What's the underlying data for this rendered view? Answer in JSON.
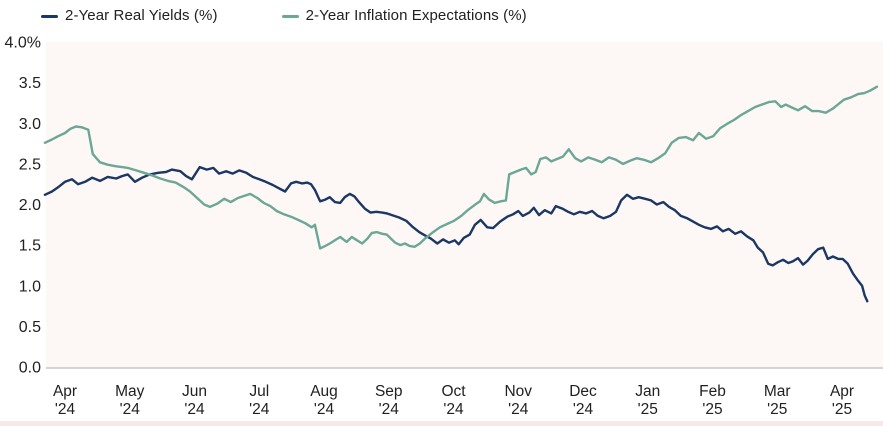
{
  "legend": {
    "items": [
      {
        "label": "2-Year Real Yields (%)",
        "series": "real_yields"
      },
      {
        "label": "2-Year Inflation Expectations (%)",
        "series": "inflation_expectations"
      }
    ]
  },
  "colors": {
    "real_yields": "#1b3764",
    "inflation_expectations": "#6ca796",
    "plot_background": "#fdf8f5",
    "axis_line": "#cac5c2",
    "text": "#212121",
    "bottom_strip": "#f7e9e5"
  },
  "chart_data": {
    "type": "line",
    "title": "",
    "xlabel": "",
    "ylabel": "",
    "grid": false,
    "legend_position": "top-left",
    "x_unit": "months since Apr 2024",
    "y_axis": {
      "range": [
        0.0,
        4.0
      ],
      "ticks": [
        {
          "label": "4.0%",
          "value": 4.0
        },
        {
          "label": "3.5",
          "value": 3.5
        },
        {
          "label": "3.0",
          "value": 3.0
        },
        {
          "label": "2.5",
          "value": 2.5
        },
        {
          "label": "2.0",
          "value": 2.0
        },
        {
          "label": "1.5",
          "value": 1.5
        },
        {
          "label": "1.0",
          "value": 1.0
        },
        {
          "label": "0.5",
          "value": 0.5
        },
        {
          "label": "0.0",
          "value": 0.0
        }
      ]
    },
    "x_axis": {
      "ticks": [
        {
          "month": "Apr",
          "year": "'24"
        },
        {
          "month": "May",
          "year": "'24"
        },
        {
          "month": "Jun",
          "year": "'24"
        },
        {
          "month": "Jul",
          "year": "'24"
        },
        {
          "month": "Aug",
          "year": "'24"
        },
        {
          "month": "Sep",
          "year": "'24"
        },
        {
          "month": "Oct",
          "year": "'24"
        },
        {
          "month": "Nov",
          "year": "'24"
        },
        {
          "month": "Dec",
          "year": "'24"
        },
        {
          "month": "Jan",
          "year": "'25"
        },
        {
          "month": "Feb",
          "year": "'25"
        },
        {
          "month": "Mar",
          "year": "'25"
        },
        {
          "month": "Apr",
          "year": "'25"
        }
      ]
    },
    "series": [
      {
        "name": "2-Year Real Yields (%)",
        "color_key": "real_yields",
        "points": [
          [
            -0.31,
            2.12
          ],
          [
            -0.2,
            2.16
          ],
          [
            -0.11,
            2.21
          ],
          [
            0,
            2.28
          ],
          [
            0.11,
            2.31
          ],
          [
            0.2,
            2.25
          ],
          [
            0.31,
            2.28
          ],
          [
            0.42,
            2.33
          ],
          [
            0.54,
            2.29
          ],
          [
            0.66,
            2.34
          ],
          [
            0.79,
            2.32
          ],
          [
            0.88,
            2.35
          ],
          [
            0.97,
            2.37
          ],
          [
            1.08,
            2.28
          ],
          [
            1.19,
            2.33
          ],
          [
            1.31,
            2.37
          ],
          [
            1.44,
            2.39
          ],
          [
            1.56,
            2.4
          ],
          [
            1.65,
            2.43
          ],
          [
            1.78,
            2.41
          ],
          [
            1.87,
            2.35
          ],
          [
            1.96,
            2.31
          ],
          [
            2.08,
            2.46
          ],
          [
            2.19,
            2.43
          ],
          [
            2.29,
            2.45
          ],
          [
            2.38,
            2.38
          ],
          [
            2.49,
            2.41
          ],
          [
            2.59,
            2.38
          ],
          [
            2.69,
            2.42
          ],
          [
            2.8,
            2.39
          ],
          [
            2.9,
            2.34
          ],
          [
            3,
            2.31
          ],
          [
            3.1,
            2.28
          ],
          [
            3.21,
            2.24
          ],
          [
            3.3,
            2.2
          ],
          [
            3.4,
            2.16
          ],
          [
            3.49,
            2.26
          ],
          [
            3.57,
            2.28
          ],
          [
            3.66,
            2.26
          ],
          [
            3.74,
            2.27
          ],
          [
            3.8,
            2.25
          ],
          [
            3.86,
            2.18
          ],
          [
            3.94,
            2.04
          ],
          [
            4.02,
            2.06
          ],
          [
            4.09,
            2.09
          ],
          [
            4.17,
            2.03
          ],
          [
            4.25,
            2.02
          ],
          [
            4.32,
            2.09
          ],
          [
            4.4,
            2.13
          ],
          [
            4.47,
            2.1
          ],
          [
            4.54,
            2.03
          ],
          [
            4.63,
            1.95
          ],
          [
            4.72,
            1.9
          ],
          [
            4.81,
            1.91
          ],
          [
            4.9,
            1.9
          ],
          [
            4.97,
            1.89
          ],
          [
            5.05,
            1.87
          ],
          [
            5.16,
            1.84
          ],
          [
            5.27,
            1.8
          ],
          [
            5.36,
            1.73
          ],
          [
            5.47,
            1.66
          ],
          [
            5.56,
            1.62
          ],
          [
            5.65,
            1.58
          ],
          [
            5.75,
            1.52
          ],
          [
            5.84,
            1.57
          ],
          [
            5.93,
            1.53
          ],
          [
            6.02,
            1.56
          ],
          [
            6.08,
            1.51
          ],
          [
            6.16,
            1.59
          ],
          [
            6.25,
            1.63
          ],
          [
            6.33,
            1.75
          ],
          [
            6.42,
            1.81
          ],
          [
            6.52,
            1.72
          ],
          [
            6.61,
            1.71
          ],
          [
            6.72,
            1.79
          ],
          [
            6.83,
            1.85
          ],
          [
            6.92,
            1.88
          ],
          [
            7,
            1.92
          ],
          [
            7.07,
            1.86
          ],
          [
            7.17,
            1.9
          ],
          [
            7.24,
            1.96
          ],
          [
            7.32,
            1.87
          ],
          [
            7.41,
            1.93
          ],
          [
            7.51,
            1.89
          ],
          [
            7.58,
            1.98
          ],
          [
            7.68,
            1.95
          ],
          [
            7.77,
            1.91
          ],
          [
            7.86,
            1.88
          ],
          [
            7.95,
            1.91
          ],
          [
            8.05,
            1.89
          ],
          [
            8.14,
            1.92
          ],
          [
            8.23,
            1.86
          ],
          [
            8.32,
            1.83
          ],
          [
            8.42,
            1.86
          ],
          [
            8.51,
            1.91
          ],
          [
            8.59,
            2.05
          ],
          [
            8.68,
            2.12
          ],
          [
            8.77,
            2.07
          ],
          [
            8.86,
            2.09
          ],
          [
            8.96,
            2.07
          ],
          [
            9.05,
            2.05
          ],
          [
            9.14,
            2
          ],
          [
            9.24,
            2.03
          ],
          [
            9.33,
            1.97
          ],
          [
            9.42,
            1.93
          ],
          [
            9.51,
            1.86
          ],
          [
            9.61,
            1.83
          ],
          [
            9.7,
            1.79
          ],
          [
            9.79,
            1.75
          ],
          [
            9.88,
            1.72
          ],
          [
            9.98,
            1.7
          ],
          [
            10.07,
            1.73
          ],
          [
            10.16,
            1.67
          ],
          [
            10.25,
            1.7
          ],
          [
            10.35,
            1.64
          ],
          [
            10.44,
            1.67
          ],
          [
            10.53,
            1.61
          ],
          [
            10.63,
            1.56
          ],
          [
            10.7,
            1.47
          ],
          [
            10.78,
            1.41
          ],
          [
            10.86,
            1.27
          ],
          [
            10.93,
            1.25
          ],
          [
            11.01,
            1.29
          ],
          [
            11.09,
            1.32
          ],
          [
            11.17,
            1.28
          ],
          [
            11.24,
            1.3
          ],
          [
            11.32,
            1.34
          ],
          [
            11.4,
            1.26
          ],
          [
            11.47,
            1.31
          ],
          [
            11.55,
            1.39
          ],
          [
            11.63,
            1.45
          ],
          [
            11.71,
            1.47
          ],
          [
            11.78,
            1.33
          ],
          [
            11.86,
            1.36
          ],
          [
            11.94,
            1.33
          ],
          [
            12.01,
            1.33
          ],
          [
            12.09,
            1.27
          ],
          [
            12.17,
            1.15
          ],
          [
            12.25,
            1.06
          ],
          [
            12.31,
            1
          ],
          [
            12.35,
            0.88
          ],
          [
            12.39,
            0.81
          ]
        ]
      },
      {
        "name": "2-Year Inflation Expectations (%)",
        "color_key": "inflation_expectations",
        "points": [
          [
            -0.31,
            2.76
          ],
          [
            -0.2,
            2.8
          ],
          [
            -0.11,
            2.84
          ],
          [
            0,
            2.88
          ],
          [
            0.08,
            2.93
          ],
          [
            0.17,
            2.96
          ],
          [
            0.26,
            2.95
          ],
          [
            0.36,
            2.92
          ],
          [
            0.43,
            2.62
          ],
          [
            0.54,
            2.52
          ],
          [
            0.66,
            2.49
          ],
          [
            0.79,
            2.47
          ],
          [
            0.88,
            2.46
          ],
          [
            0.97,
            2.45
          ],
          [
            1.1,
            2.42
          ],
          [
            1.22,
            2.39
          ],
          [
            1.34,
            2.36
          ],
          [
            1.47,
            2.32
          ],
          [
            1.59,
            2.29
          ],
          [
            1.71,
            2.27
          ],
          [
            1.84,
            2.21
          ],
          [
            1.93,
            2.16
          ],
          [
            2.04,
            2.08
          ],
          [
            2.15,
            2
          ],
          [
            2.24,
            1.97
          ],
          [
            2.35,
            2.01
          ],
          [
            2.46,
            2.07
          ],
          [
            2.56,
            2.03
          ],
          [
            2.67,
            2.08
          ],
          [
            2.78,
            2.11
          ],
          [
            2.86,
            2.13
          ],
          [
            2.97,
            2.08
          ],
          [
            3.07,
            2.02
          ],
          [
            3.17,
            1.98
          ],
          [
            3.27,
            1.92
          ],
          [
            3.38,
            1.88
          ],
          [
            3.49,
            1.85
          ],
          [
            3.6,
            1.81
          ],
          [
            3.71,
            1.77
          ],
          [
            3.81,
            1.72
          ],
          [
            3.86,
            1.75
          ],
          [
            3.94,
            1.46
          ],
          [
            4.02,
            1.49
          ],
          [
            4.09,
            1.52
          ],
          [
            4.19,
            1.57
          ],
          [
            4.25,
            1.6
          ],
          [
            4.35,
            1.54
          ],
          [
            4.43,
            1.6
          ],
          [
            4.51,
            1.56
          ],
          [
            4.59,
            1.52
          ],
          [
            4.67,
            1.58
          ],
          [
            4.74,
            1.65
          ],
          [
            4.82,
            1.66
          ],
          [
            4.9,
            1.64
          ],
          [
            4.97,
            1.63
          ],
          [
            5.1,
            1.53
          ],
          [
            5.18,
            1.5
          ],
          [
            5.25,
            1.52
          ],
          [
            5.32,
            1.49
          ],
          [
            5.4,
            1.48
          ],
          [
            5.48,
            1.52
          ],
          [
            5.56,
            1.58
          ],
          [
            5.67,
            1.65
          ],
          [
            5.79,
            1.72
          ],
          [
            5.9,
            1.76
          ],
          [
            6.01,
            1.8
          ],
          [
            6.12,
            1.86
          ],
          [
            6.22,
            1.93
          ],
          [
            6.32,
            1.99
          ],
          [
            6.41,
            2.04
          ],
          [
            6.47,
            2.13
          ],
          [
            6.55,
            2.06
          ],
          [
            6.64,
            2.02
          ],
          [
            6.73,
            2.04
          ],
          [
            6.81,
            2.05
          ],
          [
            6.86,
            2.37
          ],
          [
            6.95,
            2.4
          ],
          [
            7.04,
            2.43
          ],
          [
            7.12,
            2.45
          ],
          [
            7.2,
            2.37
          ],
          [
            7.27,
            2.4
          ],
          [
            7.34,
            2.56
          ],
          [
            7.43,
            2.58
          ],
          [
            7.51,
            2.53
          ],
          [
            7.6,
            2.56
          ],
          [
            7.69,
            2.59
          ],
          [
            7.78,
            2.68
          ],
          [
            7.88,
            2.57
          ],
          [
            7.97,
            2.53
          ],
          [
            8.08,
            2.58
          ],
          [
            8.19,
            2.55
          ],
          [
            8.29,
            2.52
          ],
          [
            8.4,
            2.58
          ],
          [
            8.51,
            2.55
          ],
          [
            8.62,
            2.5
          ],
          [
            8.73,
            2.54
          ],
          [
            8.83,
            2.57
          ],
          [
            8.94,
            2.55
          ],
          [
            9.05,
            2.52
          ],
          [
            9.16,
            2.57
          ],
          [
            9.27,
            2.63
          ],
          [
            9.37,
            2.76
          ],
          [
            9.48,
            2.82
          ],
          [
            9.59,
            2.83
          ],
          [
            9.7,
            2.79
          ],
          [
            9.79,
            2.88
          ],
          [
            9.9,
            2.81
          ],
          [
            10.01,
            2.84
          ],
          [
            10.12,
            2.94
          ],
          [
            10.22,
            2.99
          ],
          [
            10.33,
            3.04
          ],
          [
            10.44,
            3.1
          ],
          [
            10.55,
            3.15
          ],
          [
            10.66,
            3.2
          ],
          [
            10.76,
            3.23
          ],
          [
            10.87,
            3.26
          ],
          [
            10.97,
            3.27
          ],
          [
            11.06,
            3.2
          ],
          [
            11.13,
            3.23
          ],
          [
            11.21,
            3.2
          ],
          [
            11.32,
            3.16
          ],
          [
            11.43,
            3.21
          ],
          [
            11.54,
            3.15
          ],
          [
            11.64,
            3.15
          ],
          [
            11.75,
            3.13
          ],
          [
            11.86,
            3.18
          ],
          [
            11.95,
            3.24
          ],
          [
            12.03,
            3.29
          ],
          [
            12.14,
            3.32
          ],
          [
            12.25,
            3.36
          ],
          [
            12.34,
            3.37
          ],
          [
            12.43,
            3.4
          ],
          [
            12.54,
            3.45
          ]
        ]
      }
    ]
  }
}
